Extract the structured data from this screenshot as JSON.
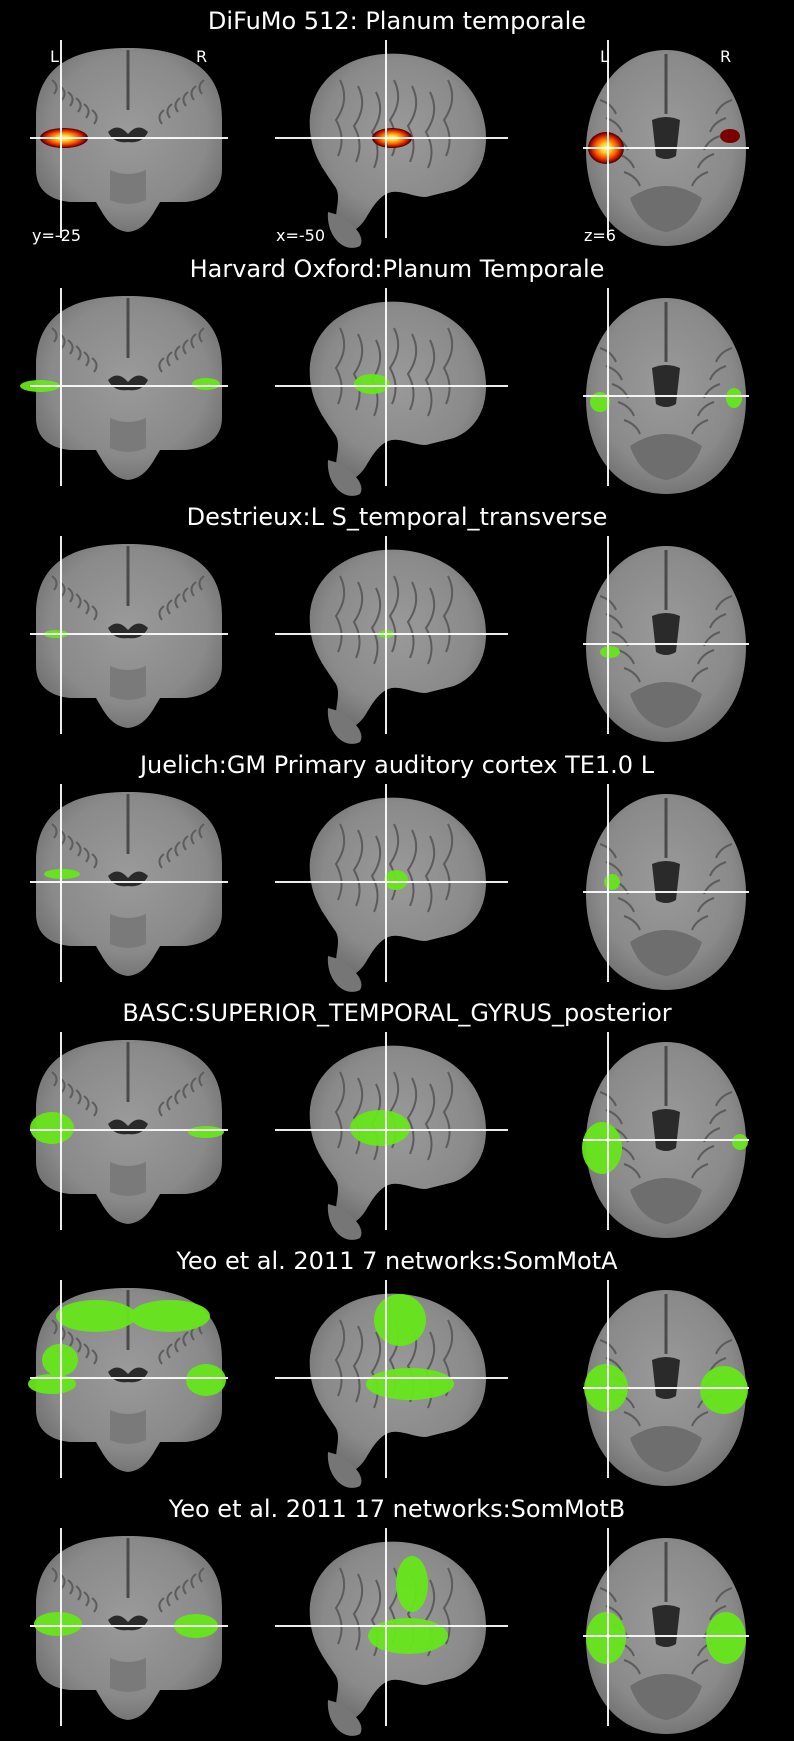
{
  "figure": {
    "background_color": "#000000",
    "crosshair_color": "#ffffff",
    "brain_color": "#8c8c8c",
    "atlas_color": "#66e61a",
    "heat_colors": [
      "#ffff66",
      "#ff7a00",
      "#c81400",
      "#5a0000"
    ]
  },
  "orientation": {
    "left": "L",
    "right": "R"
  },
  "cuts": {
    "coronal": "y=-25",
    "sagittal": "x=-50",
    "axial": "z=6"
  },
  "rows": [
    {
      "title": "DiFuMo 512: Planum temporale",
      "overlay": "heat"
    },
    {
      "title": "Harvard Oxford:Planum Temporale",
      "overlay": "green"
    },
    {
      "title": "Destrieux:L S_temporal_transverse",
      "overlay": "green"
    },
    {
      "title": "Juelich:GM Primary auditory cortex TE1.0 L",
      "overlay": "green"
    },
    {
      "title": "BASC:SUPERIOR_TEMPORAL_GYRUS_posterior",
      "overlay": "green"
    },
    {
      "title": "Yeo et al. 2011 7 networks:SomMotA",
      "overlay": "green"
    },
    {
      "title": "Yeo et al. 2011 17 networks:SomMotB",
      "overlay": "green"
    }
  ]
}
